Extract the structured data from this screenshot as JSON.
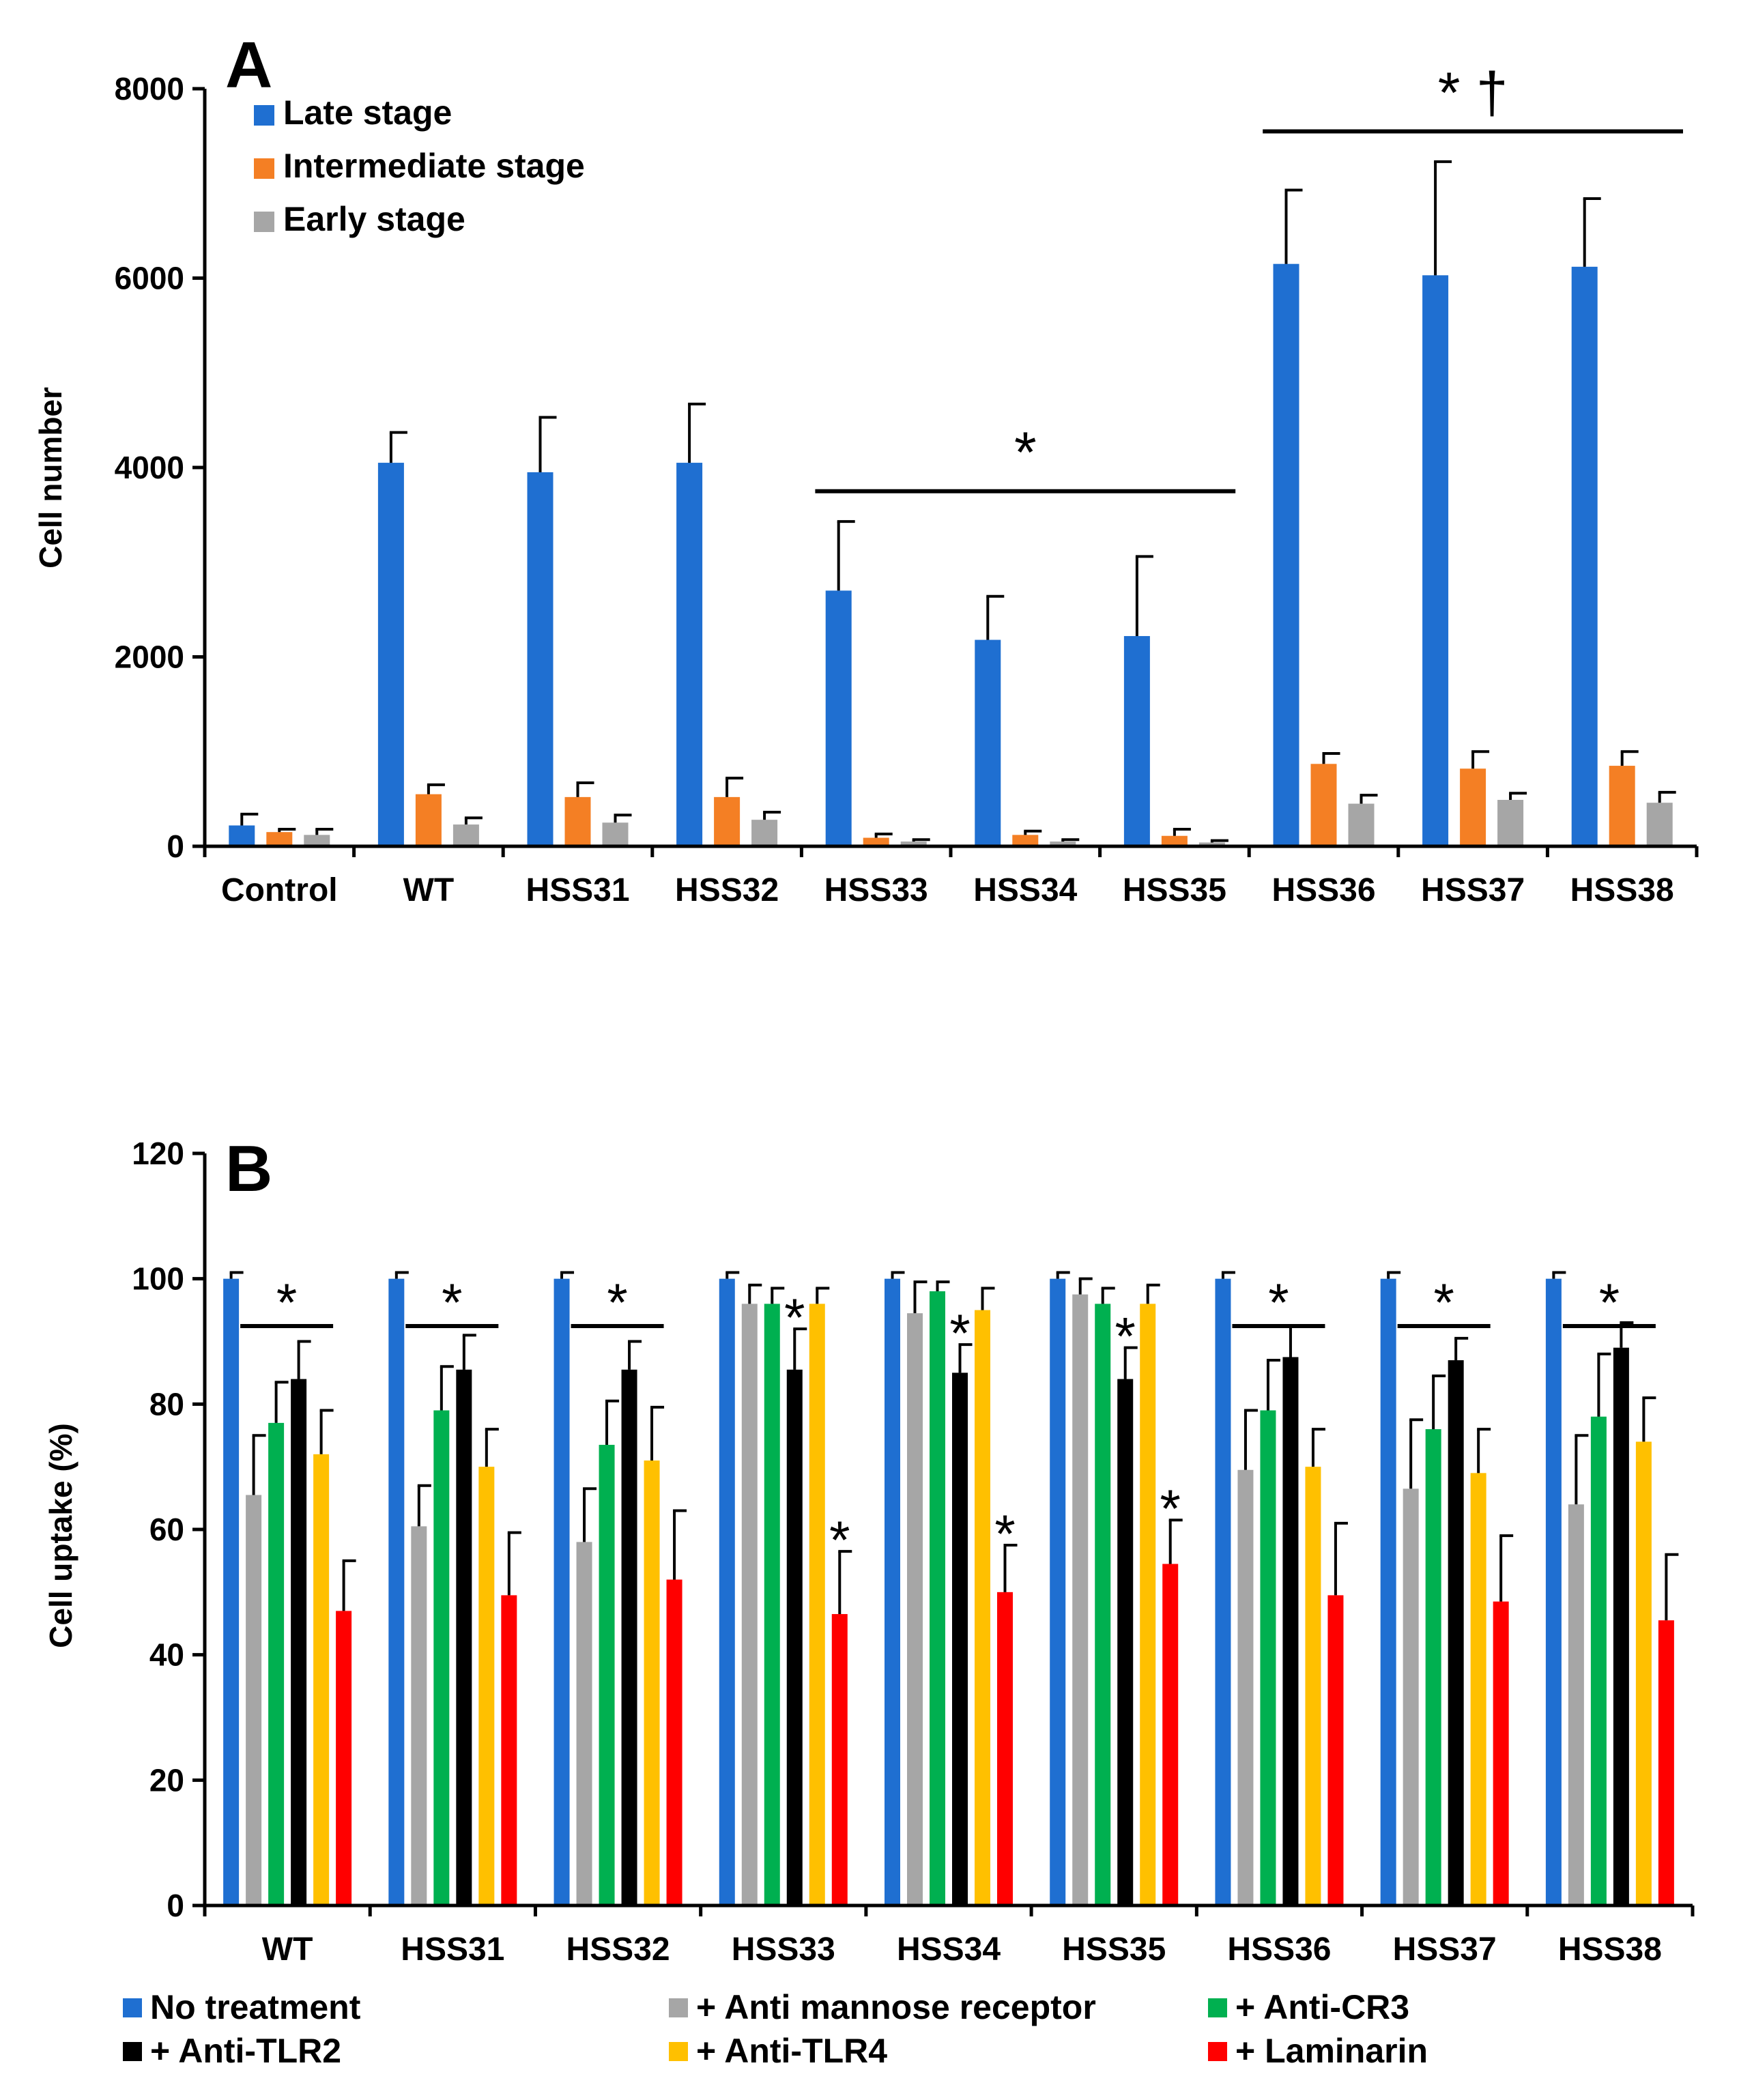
{
  "chart_data": [
    {
      "type": "bar",
      "panel_label": "A",
      "ylabel": "Cell number",
      "xlabel": "",
      "ylim": [
        0,
        8000
      ],
      "yticks": [
        "0",
        "2000",
        "4000",
        "6000",
        "8000"
      ],
      "categories": [
        "Control",
        "WT",
        "HSS31",
        "HSS32",
        "HSS33",
        "HSS34",
        "HSS35",
        "HSS36",
        "HSS37",
        "HSS38"
      ],
      "series": [
        {
          "name": "Late stage",
          "color": "#1f6fd1",
          "values": [
            220,
            4050,
            3950,
            4050,
            2700,
            2180,
            2220,
            6150,
            6030,
            6120
          ],
          "errors": [
            120,
            320,
            580,
            620,
            730,
            460,
            840,
            780,
            1200,
            720
          ]
        },
        {
          "name": "Intermediate stage",
          "color": "#f47f24",
          "values": [
            150,
            550,
            520,
            520,
            90,
            120,
            110,
            870,
            820,
            850
          ],
          "errors": [
            30,
            100,
            150,
            200,
            40,
            40,
            70,
            110,
            180,
            150
          ]
        },
        {
          "name": "Early stage",
          "color": "#a6a6a6",
          "values": [
            120,
            230,
            250,
            280,
            50,
            50,
            40,
            450,
            490,
            460
          ],
          "errors": [
            60,
            70,
            80,
            80,
            20,
            20,
            20,
            90,
            70,
            110
          ]
        }
      ],
      "significance": [
        {
          "label": "*",
          "from": "HSS33",
          "to": "HSS35",
          "at": 3750
        },
        {
          "label": "* †",
          "from": "HSS36",
          "to": "HSS38",
          "at": 7550
        }
      ],
      "legend_position": "top-left"
    },
    {
      "type": "bar",
      "panel_label": "B",
      "ylabel": "Cell uptake (%)",
      "xlabel": "",
      "ylim": [
        0,
        120
      ],
      "yticks": [
        "0",
        "20",
        "40",
        "60",
        "80",
        "100",
        "120"
      ],
      "categories": [
        "WT",
        "HSS31",
        "HSS32",
        "HSS33",
        "HSS34",
        "HSS35",
        "HSS36",
        "HSS37",
        "HSS38"
      ],
      "series": [
        {
          "name": "No treatment",
          "color": "#1f6fd1",
          "values": [
            100,
            100,
            100,
            100,
            100,
            100,
            100,
            100,
            100
          ],
          "errors": [
            1,
            1,
            1,
            1,
            1,
            1,
            1,
            1,
            1
          ]
        },
        {
          "name": "+ Anti mannose receptor",
          "color": "#a6a6a6",
          "values": [
            65.5,
            60.5,
            58,
            96,
            94.5,
            97.5,
            69.5,
            66.5,
            64
          ],
          "errors": [
            9.5,
            6.5,
            8.5,
            3,
            5,
            2.5,
            9.5,
            11,
            11
          ]
        },
        {
          "name": "+ Anti-CR3",
          "color": "#00b050",
          "values": [
            77,
            79,
            73.5,
            96,
            98,
            96,
            79,
            76,
            78
          ],
          "errors": [
            6.5,
            7,
            7,
            2.5,
            1.5,
            2.5,
            8,
            8.5,
            10
          ]
        },
        {
          "name": "+ Anti-TLR2",
          "color": "#000000",
          "values": [
            84,
            85.5,
            85.5,
            85.5,
            85,
            84,
            87.5,
            87,
            89
          ],
          "errors": [
            6,
            5.5,
            4.5,
            6.5,
            4.5,
            5,
            5,
            3.5,
            4
          ]
        },
        {
          "name": "+ Anti-TLR4",
          "color": "#ffc000",
          "values": [
            72,
            70,
            71,
            96,
            95,
            96,
            70,
            69,
            74
          ],
          "errors": [
            7,
            6,
            8.5,
            2.5,
            3.5,
            3,
            6,
            7,
            7
          ]
        },
        {
          "name": "+ Laminarin",
          "color": "#ff0000",
          "values": [
            47,
            49.5,
            52,
            46.5,
            50,
            54.5,
            49.5,
            48.5,
            45.5
          ],
          "errors": [
            8,
            10,
            11,
            10,
            7.5,
            7,
            11.5,
            10.5,
            10.5
          ]
        }
      ],
      "significance": [
        {
          "label": "*",
          "category": "WT",
          "type": "bracket"
        },
        {
          "label": "*",
          "category": "HSS31",
          "type": "bracket"
        },
        {
          "label": "*",
          "category": "HSS32",
          "type": "bracket"
        },
        {
          "label": "*",
          "category": "HSS33",
          "series": "+ Anti-TLR2"
        },
        {
          "label": "*",
          "category": "HSS33",
          "series": "+ Laminarin"
        },
        {
          "label": "*",
          "category": "HSS34",
          "series": "+ Anti-TLR2"
        },
        {
          "label": "*",
          "category": "HSS34",
          "series": "+ Laminarin"
        },
        {
          "label": "*",
          "category": "HSS35",
          "series": "+ Anti-TLR2"
        },
        {
          "label": "*",
          "category": "HSS35",
          "series": "+ Laminarin"
        },
        {
          "label": "*",
          "category": "HSS36",
          "type": "bracket"
        },
        {
          "label": "*",
          "category": "HSS37",
          "type": "bracket"
        },
        {
          "label": "*",
          "category": "HSS38",
          "type": "bracket"
        }
      ],
      "legend_position": "bottom"
    }
  ]
}
